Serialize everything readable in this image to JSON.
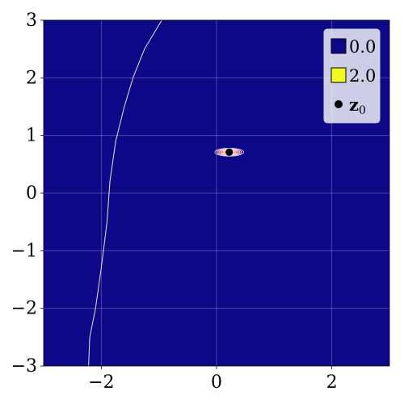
{
  "chart_data": {
    "type": "heatmap",
    "title": "",
    "xlabel": "",
    "ylabel": "",
    "xlim": [
      -3,
      3
    ],
    "ylim": [
      -3,
      3
    ],
    "x_ticks": [
      -2,
      0,
      2
    ],
    "x_tick_labels": [
      "−2",
      "0",
      "2"
    ],
    "y_ticks": [
      -3,
      -2,
      -1,
      0,
      1,
      2,
      3
    ],
    "y_tick_labels": [
      "−3",
      "−2",
      "−1",
      "0",
      "1",
      "2",
      "3"
    ],
    "grid": true,
    "colormap": "plasma",
    "color_range": [
      0.0,
      2.0
    ],
    "background_color": "#0d0887",
    "peak": {
      "x": 0.22,
      "y": 0.71,
      "sigma_x": 0.25,
      "sigma_y": 0.07
    },
    "contour_levels": [
      0.25,
      0.5,
      0.75,
      1.0,
      1.25,
      1.5
    ],
    "boundary_line": {
      "color": "#e6e6e6",
      "points": [
        [
          -2.22,
          -3.0
        ],
        [
          -2.2,
          -2.5
        ],
        [
          -2.1,
          -2.0
        ],
        [
          -2.0,
          -1.3
        ],
        [
          -1.9,
          -0.5
        ],
        [
          -1.85,
          0.2
        ],
        [
          -1.75,
          0.9
        ],
        [
          -1.6,
          1.5
        ],
        [
          -1.45,
          2.0
        ],
        [
          -1.25,
          2.5
        ],
        [
          -0.95,
          3.0
        ]
      ]
    },
    "marker": {
      "x": 0.22,
      "y": 0.71,
      "label": "z",
      "label_sub": "0",
      "color": "#000000"
    },
    "legend": {
      "placement": "top-right",
      "entries": [
        {
          "label": "0.0",
          "color": "#0d0887",
          "kind": "swatch"
        },
        {
          "label": "2.0",
          "color": "#f0f921",
          "kind": "swatch"
        },
        {
          "label": "z",
          "sub": "0",
          "color": "#000000",
          "kind": "dot"
        }
      ]
    }
  }
}
